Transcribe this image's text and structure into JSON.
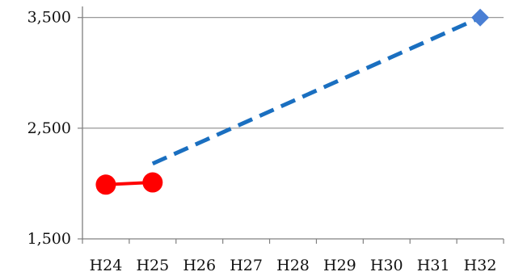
{
  "chart_data": {
    "type": "line",
    "title": "",
    "xlabel": "",
    "ylabel": "",
    "categories": [
      "H24",
      "H25",
      "H26",
      "H27",
      "H28",
      "H29",
      "H30",
      "H31",
      "H32"
    ],
    "ylim": [
      1500,
      3600
    ],
    "yticks": [
      1500,
      2500,
      3500
    ],
    "ytick_labels": [
      "1,500",
      "2,500",
      "3,500"
    ],
    "grid": "horizontal",
    "legend": "none",
    "series": [
      {
        "style": "solid",
        "marker": "circle",
        "color": "#ff0000",
        "points": [
          {
            "x": "H24",
            "y": 1990
          },
          {
            "x": "H25",
            "y": 2010
          }
        ]
      },
      {
        "style": "dashed",
        "marker": "none",
        "color": "#1a6fc0",
        "points": [
          {
            "x": "H25",
            "y": 2180
          },
          {
            "x": "H32",
            "y": 3500
          }
        ]
      },
      {
        "style": "marker-only",
        "marker": "diamond",
        "color": "#4a7fd4",
        "points": [
          {
            "x": "H32",
            "y": 3500
          }
        ]
      }
    ]
  }
}
